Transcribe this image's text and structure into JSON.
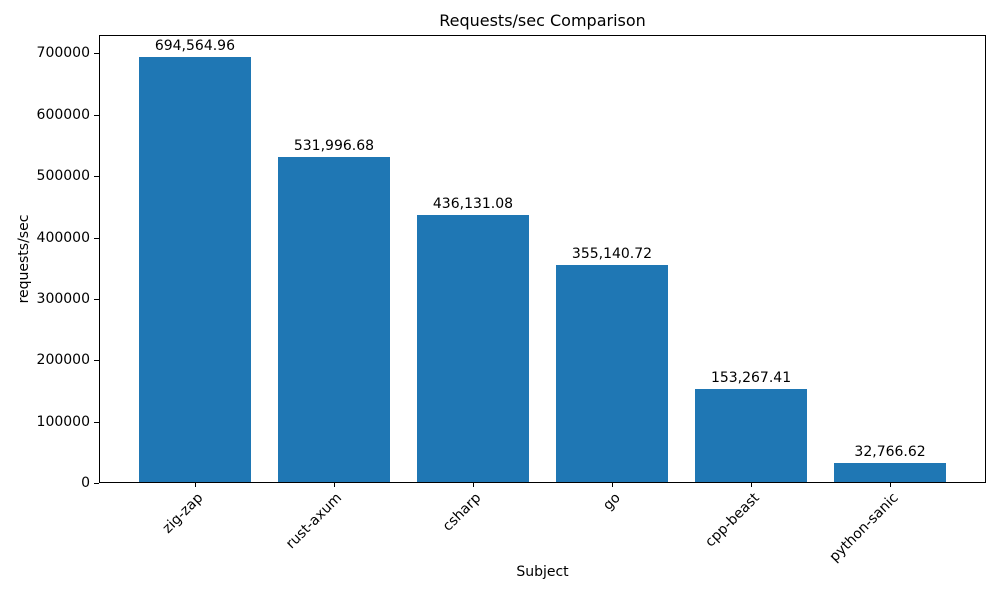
{
  "chart_data": {
    "type": "bar",
    "title": "Requests/sec Comparison",
    "xlabel": "Subject",
    "ylabel": "requests/sec",
    "categories": [
      "zig-zap",
      "rust-axum",
      "csharp",
      "go",
      "cpp-beast",
      "python-sanic"
    ],
    "values": [
      694564.96,
      531996.68,
      436131.08,
      355140.72,
      153267.41,
      32766.62
    ],
    "value_labels": [
      "694,564.96",
      "531,996.68",
      "436,131.08",
      "355,140.72",
      "153,267.41",
      "32,766.62"
    ],
    "yticks": [
      0,
      100000,
      200000,
      300000,
      400000,
      500000,
      600000,
      700000
    ],
    "ylim": [
      0,
      730000
    ],
    "bar_color": "#1f77b4",
    "background_color": "#ffffff",
    "text_color": "#000000",
    "grid": false,
    "x_tick_rotation_deg": 45
  }
}
